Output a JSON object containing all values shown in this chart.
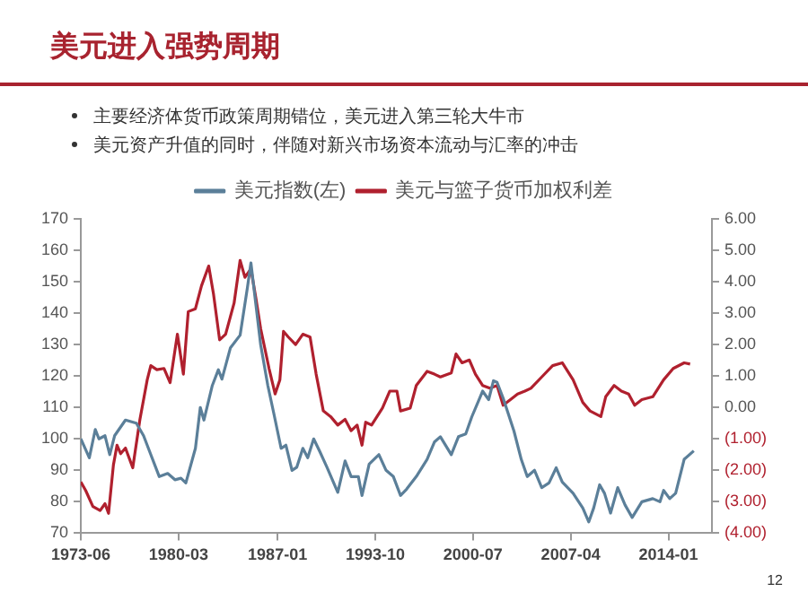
{
  "chart_data": {
    "type": "line",
    "title": "美元进入强势周期",
    "annotations": [
      "主要经济体货币政策周期错位，美元进入第三轮大牛市",
      "美元资产升值的同时，伴随对新兴市场资本流动与汇率的冲击",
      "12"
    ],
    "legend": "top",
    "marker": "none",
    "line_style": "solid",
    "xlim": [
      "1973-06",
      "2017-01"
    ],
    "xticks": [
      "1973-06",
      "1980-03",
      "1987-01",
      "1993-10",
      "2000-07",
      "2007-04",
      "2014-01"
    ],
    "ylim": [
      70,
      170
    ],
    "yticks": [
      70,
      80,
      90,
      100,
      110,
      120,
      130,
      140,
      150,
      160,
      170
    ],
    "y2lim": [
      -4,
      6
    ],
    "y2ticks": [
      {
        "value": -4,
        "label": "(4.00)"
      },
      {
        "value": -3,
        "label": "(3.00)"
      },
      {
        "value": -2,
        "label": "(2.00)"
      },
      {
        "value": -1,
        "label": "(1.00)"
      },
      {
        "value": 0,
        "label": "0.00"
      },
      {
        "value": 1,
        "label": "1.00"
      },
      {
        "value": 2,
        "label": "2.00"
      },
      {
        "value": 3,
        "label": "3.00"
      },
      {
        "value": 4,
        "label": "4.00"
      },
      {
        "value": 5,
        "label": "5.00"
      },
      {
        "value": 6,
        "label": "6.00"
      }
    ],
    "series": [
      {
        "name": "美元指数(左)",
        "color": "#5b7f99",
        "x": [
          "1973-06",
          "1974-01",
          "1974-06",
          "1974-09",
          "1975-02",
          "1975-06",
          "1975-10",
          "1976-07",
          "1977-04",
          "1977-10",
          "1978-04",
          "1978-11",
          "1979-06",
          "1979-12",
          "1980-05",
          "1980-09",
          "1981-05",
          "1981-09",
          "1981-12",
          "1982-07",
          "1982-12",
          "1983-03",
          "1983-10",
          "1984-06",
          "1984-12",
          "1985-03",
          "1985-07",
          "1985-11",
          "1986-05",
          "1986-10",
          "1987-04",
          "1987-08",
          "1988-01",
          "1988-05",
          "1988-10",
          "1989-02",
          "1989-07",
          "1989-12",
          "1990-06",
          "1991-03",
          "1991-09",
          "1992-02",
          "1992-08",
          "1992-11",
          "1993-05",
          "1994-01",
          "1994-07",
          "1995-01",
          "1995-07",
          "1995-12",
          "1996-08",
          "1997-05",
          "1997-11",
          "1998-04",
          "1999-01",
          "1999-07",
          "2000-01",
          "2000-06",
          "2001-01",
          "2001-03",
          "2001-08",
          "2001-12",
          "2002-03",
          "2002-08",
          "2003-05",
          "2003-11",
          "2004-04",
          "2004-10",
          "2005-04",
          "2005-10",
          "2006-04",
          "2006-09",
          "2007-06",
          "2008-02",
          "2008-07",
          "2008-11",
          "2009-04",
          "2009-08",
          "2010-01",
          "2010-07",
          "2011-01",
          "2011-07",
          "2012-03",
          "2012-12",
          "2013-06",
          "2013-09",
          "2014-02",
          "2014-07",
          "2015-02",
          "2015-10"
        ],
        "values": [
          100,
          94,
          103,
          100,
          101,
          95,
          101,
          106,
          105,
          101,
          95,
          88,
          89,
          87,
          87.5,
          86,
          97,
          110,
          106,
          117,
          122,
          119,
          129,
          133,
          148,
          156,
          143,
          130,
          117,
          108,
          97,
          98,
          90,
          91,
          97,
          94,
          100,
          96,
          91,
          83,
          93,
          88,
          88,
          82,
          92,
          95,
          90,
          88,
          82,
          84,
          88,
          93.5,
          99,
          100.7,
          95,
          100.7,
          101.6,
          107,
          113.4,
          115.2,
          112.5,
          118.5,
          118,
          113,
          102.5,
          93.5,
          88,
          90,
          84.5,
          86,
          90.8,
          86.3,
          82.7,
          78,
          73.6,
          78,
          85.4,
          82.7,
          76.4,
          84.5,
          79,
          75,
          80,
          81,
          80,
          83.6,
          81,
          82.7,
          93.5,
          96.2
        ]
      },
      {
        "name": "美元与篮子货币加权利差",
        "color": "#b0202e",
        "axis": "y2",
        "x": [
          "1973-06",
          "1973-10",
          "1974-04",
          "1974-10",
          "1975-02",
          "1975-05",
          "1975-09",
          "1975-12",
          "1976-03",
          "1976-07",
          "1977-01",
          "1977-07",
          "1978-01",
          "1978-04",
          "1978-09",
          "1979-03",
          "1979-08",
          "1980-02",
          "1980-07",
          "1980-11",
          "1981-05",
          "1981-10",
          "1982-04",
          "1982-08",
          "1983-01",
          "1983-06",
          "1984-01",
          "1984-06",
          "1984-10",
          "1985-03",
          "1985-07",
          "1985-11",
          "1986-06",
          "1986-11",
          "1987-03",
          "1987-06",
          "1987-10",
          "1988-04",
          "1988-10",
          "1989-04",
          "1989-09",
          "1990-03",
          "1990-09",
          "1991-03",
          "1991-09",
          "1992-02",
          "1992-07",
          "1992-11",
          "1993-02",
          "1993-07",
          "1994-04",
          "1994-10",
          "1995-04",
          "1995-07",
          "1996-03",
          "1996-08",
          "1997-05",
          "1997-11",
          "1998-04",
          "1999-01",
          "1999-05",
          "1999-10",
          "2000-04",
          "2000-09",
          "2001-03",
          "2001-09",
          "2002-03",
          "2002-08",
          "2003-02",
          "2003-08",
          "2004-02",
          "2004-07",
          "2005-04",
          "2006-01",
          "2006-09",
          "2007-06",
          "2008-02",
          "2008-08",
          "2009-05",
          "2009-09",
          "2010-04",
          "2010-10",
          "2011-04",
          "2011-09",
          "2012-03",
          "2012-12",
          "2013-09",
          "2014-05",
          "2015-02",
          "2015-07"
        ],
        "values": [
          -2.37,
          -2.64,
          -3.15,
          -3.28,
          -3.06,
          -3.37,
          -1.83,
          -1.2,
          -1.47,
          -1.29,
          -1.92,
          -0.38,
          0.88,
          1.33,
          1.2,
          1.24,
          0.79,
          2.33,
          1.06,
          3.05,
          3.14,
          3.87,
          4.5,
          3.6,
          2.15,
          2.33,
          3.32,
          4.68,
          4.14,
          4.41,
          3.5,
          2.51,
          1.24,
          0.43,
          0.88,
          2.42,
          2.24,
          2.0,
          2.33,
          2.24,
          1.06,
          -0.11,
          -0.29,
          -0.56,
          -0.38,
          -0.74,
          -0.56,
          -1.2,
          -0.47,
          -0.56,
          -0.02,
          0.52,
          0.52,
          -0.11,
          -0.02,
          0.7,
          1.15,
          1.06,
          0.97,
          1.1,
          1.7,
          1.42,
          1.51,
          1.06,
          0.7,
          0.61,
          0.7,
          0.07,
          0.25,
          0.43,
          0.52,
          0.61,
          0.97,
          1.33,
          1.42,
          0.88,
          0.16,
          -0.11,
          -0.29,
          0.34,
          0.7,
          0.52,
          0.43,
          0.07,
          0.25,
          0.34,
          0.88,
          1.24,
          1.42,
          1.38
        ]
      }
    ]
  }
}
